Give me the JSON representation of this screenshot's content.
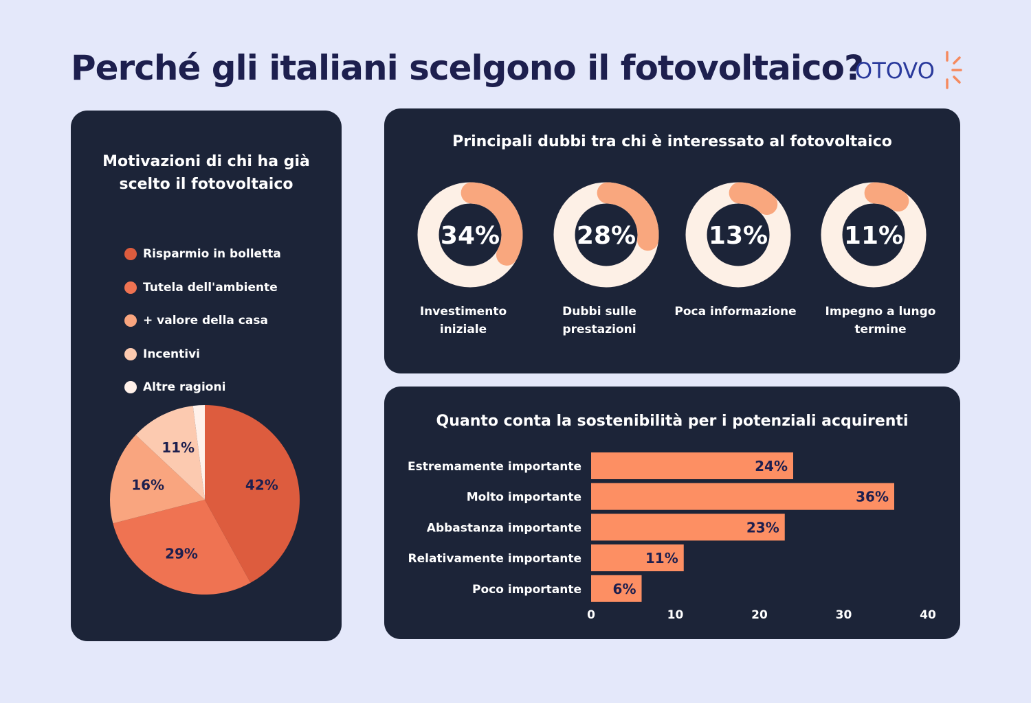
{
  "title": "Perché gli italiani scelgono il fotovoltaico?",
  "logo": "OTOVO",
  "colors": {
    "accent": "#f9a77e",
    "panel": "#1c2438",
    "title": "#1d1f4e",
    "bar": "#fd8f63",
    "ring": "#fdf0e6"
  },
  "chart_data": [
    {
      "type": "pie",
      "title": "Motivazioni di chi ha già scelto il fotovoltaico",
      "legend_placement": "top",
      "categories": [
        "Risparmio in bolletta",
        "Tutela dell'ambiente",
        "+ valore della casa",
        "Incentivi",
        "Altre ragioni"
      ],
      "values": [
        42,
        29,
        16,
        11,
        2
      ],
      "labels": [
        "42%",
        "29%",
        "16%",
        "11%",
        ""
      ],
      "colors": [
        "#dd5c3e",
        "#ef7352",
        "#f9a57f",
        "#fccab0",
        "#fff1ea"
      ]
    },
    {
      "type": "donut",
      "title": "Principali dubbi tra chi è interessato al fotovoltaico",
      "categories": [
        "Investimento iniziale",
        "Dubbi sulle prestazioni",
        "Poca informazione",
        "Impegno a lungo termine"
      ],
      "values": [
        34,
        28,
        13,
        11
      ],
      "labels": [
        "34%",
        "28%",
        "13%",
        "11%"
      ]
    },
    {
      "type": "bar",
      "orientation": "horizontal",
      "title": "Quanto conta la sostenibilità per i potenziali acquirenti",
      "categories": [
        "Estremamente importante",
        "Molto importante",
        "Abbastanza importante",
        "Relativamente importante",
        "Poco importante"
      ],
      "values": [
        24,
        36,
        23,
        11,
        6
      ],
      "labels": [
        "24%",
        "36%",
        "23%",
        "11%",
        "6%"
      ],
      "xlim": [
        0,
        40
      ],
      "xticks": [
        "0",
        "10",
        "20",
        "30",
        "40"
      ],
      "grid": false
    }
  ]
}
